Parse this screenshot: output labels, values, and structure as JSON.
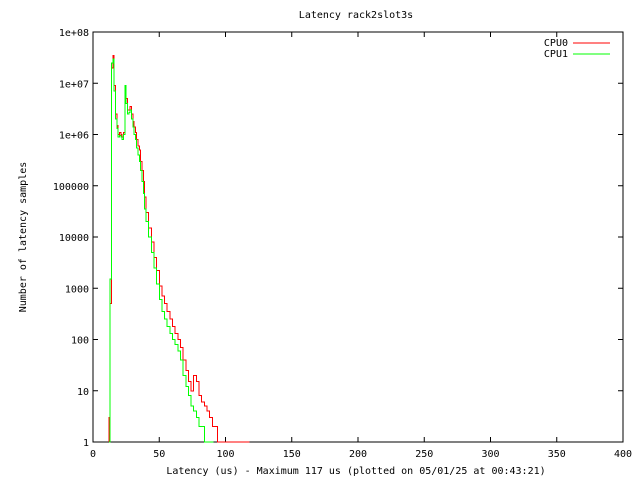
{
  "chart_data": {
    "type": "line",
    "title": "Latency rack2slot3s",
    "xlabel": "Latency (us) - Maximum 117 us (plotted on 05/01/25 at 00:43:21)",
    "ylabel": "Number of latency samples",
    "xlim": [
      0,
      400
    ],
    "ylim": [
      1,
      100000000
    ],
    "yscale": "log",
    "grid": false,
    "legend_position": "top-right",
    "x_ticks": [
      0,
      50,
      100,
      150,
      200,
      250,
      300,
      350,
      400
    ],
    "x_tick_labels": [
      "0",
      "50",
      "100",
      "150",
      "200",
      "250",
      "300",
      "350",
      "400"
    ],
    "y_ticks": [
      1,
      10,
      100,
      1000,
      10000,
      100000,
      1000000,
      10000000,
      100000000
    ],
    "y_tick_labels": [
      "1",
      "10",
      "100",
      "1000",
      "10000",
      "100000",
      "1e+06",
      "1e+07",
      "1e+08"
    ],
    "series": [
      {
        "name": "CPU0",
        "color": "#ff0000",
        "x": [
          12,
          13,
          14,
          15,
          16,
          17,
          18,
          19,
          20,
          21,
          22,
          23,
          24,
          25,
          26,
          27,
          28,
          29,
          30,
          31,
          32,
          33,
          34,
          35,
          36,
          37,
          38,
          39,
          40,
          42,
          44,
          46,
          48,
          50,
          52,
          54,
          56,
          58,
          60,
          62,
          64,
          66,
          68,
          70,
          72,
          74,
          76,
          78,
          80,
          82,
          84,
          86,
          88,
          90,
          92,
          94,
          96,
          98,
          100,
          102,
          104,
          106,
          117
        ],
        "values": [
          3,
          500,
          20000000,
          35000000,
          9000000,
          2500000,
          1500000,
          1000000,
          1100000,
          1000000,
          900000,
          1100000,
          8000000,
          5000000,
          3000000,
          3000000,
          3500000,
          2500000,
          1800000,
          1400000,
          1100000,
          800000,
          600000,
          500000,
          300000,
          200000,
          120000,
          60000,
          30000,
          15000,
          8000,
          4000,
          2200,
          1100,
          700,
          500,
          350,
          250,
          180,
          130,
          100,
          70,
          40,
          25,
          15,
          10,
          20,
          15,
          8,
          6,
          5,
          4,
          3,
          2,
          2,
          1,
          1,
          1,
          1,
          1,
          1,
          1,
          1
        ]
      },
      {
        "name": "CPU1",
        "color": "#00ff00",
        "x": [
          12,
          13,
          14,
          15,
          16,
          17,
          18,
          19,
          20,
          21,
          22,
          23,
          24,
          25,
          26,
          27,
          28,
          29,
          30,
          31,
          32,
          33,
          34,
          35,
          36,
          37,
          38,
          39,
          40,
          42,
          44,
          46,
          48,
          50,
          52,
          54,
          56,
          58,
          60,
          62,
          64,
          66,
          68,
          70,
          72,
          74,
          76,
          78,
          80,
          82,
          84,
          86,
          88,
          90
        ],
        "values": [
          1,
          1500,
          25000000,
          30000000,
          7000000,
          2000000,
          1300000,
          900000,
          950000,
          900000,
          800000,
          1000000,
          9000000,
          4000000,
          2500000,
          2700000,
          3000000,
          2000000,
          1400000,
          1000000,
          800000,
          550000,
          400000,
          300000,
          200000,
          120000,
          70000,
          35000,
          20000,
          10000,
          5000,
          2500,
          1200,
          600,
          350,
          250,
          180,
          130,
          100,
          80,
          60,
          40,
          20,
          12,
          8,
          5,
          4,
          3,
          2,
          2,
          1,
          1,
          1,
          1
        ]
      }
    ]
  }
}
